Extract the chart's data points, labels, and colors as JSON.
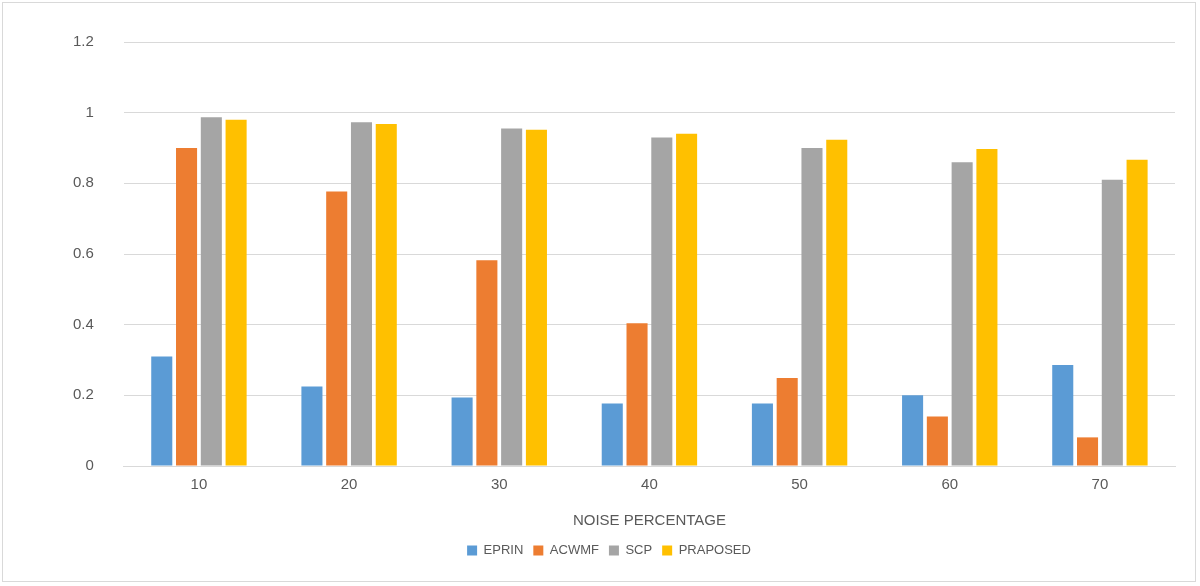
{
  "chart_data": {
    "type": "bar",
    "xlabel": "NOISE PERCENTAGE",
    "categories": [
      "10",
      "20",
      "30",
      "40",
      "50",
      "60",
      "70"
    ],
    "series": [
      {
        "name": "EPRIN",
        "color": "#5b9bd5",
        "values": [
          0.31,
          0.225,
          0.194,
          0.177,
          0.177,
          0.2,
          0.286
        ]
      },
      {
        "name": "ACWMF",
        "color": "#ed7d31",
        "values": [
          0.9,
          0.777,
          0.582,
          0.404,
          0.249,
          0.14,
          0.081
        ]
      },
      {
        "name": "SCP",
        "color": "#a5a5a5",
        "values": [
          0.987,
          0.973,
          0.955,
          0.93,
          0.9,
          0.86,
          0.81
        ]
      },
      {
        "name": "PRAPOSED",
        "color": "#ffc000",
        "values": [
          0.98,
          0.968,
          0.952,
          0.94,
          0.923,
          0.897,
          0.867
        ]
      }
    ],
    "ylim": [
      0,
      1.2
    ],
    "yticks": [
      0,
      0.2,
      0.4,
      0.6,
      0.8,
      1,
      1.2
    ],
    "grid": "y",
    "legend": "bottom"
  }
}
